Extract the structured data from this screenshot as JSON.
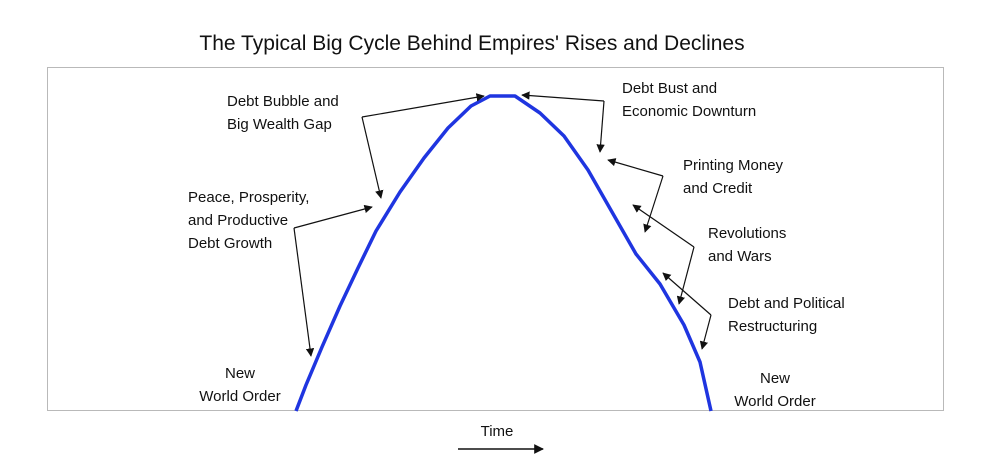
{
  "title": "The Typical Big Cycle Behind Empires' Rises and Declines",
  "axis": {
    "x_label": "Time"
  },
  "curve_color": "#1f35e0",
  "annotations": [
    {
      "id": "debt-bubble",
      "lines": [
        "Debt Bubble and",
        "Big Wealth Gap"
      ]
    },
    {
      "id": "peace",
      "lines": [
        "Peace, Prosperity,",
        "and Productive",
        "Debt Growth"
      ]
    },
    {
      "id": "nwo-left",
      "lines": [
        "New",
        "World Order"
      ]
    },
    {
      "id": "debt-bust",
      "lines": [
        "Debt Bust and",
        "Economic Downturn"
      ]
    },
    {
      "id": "printing",
      "lines": [
        "Printing Money",
        "and Credit"
      ]
    },
    {
      "id": "revolutions",
      "lines": [
        "Revolutions",
        "and Wars"
      ]
    },
    {
      "id": "restructuring",
      "lines": [
        "Debt and Political",
        "Restructuring"
      ]
    },
    {
      "id": "nwo-right",
      "lines": [
        "New",
        "World Order"
      ]
    }
  ]
}
